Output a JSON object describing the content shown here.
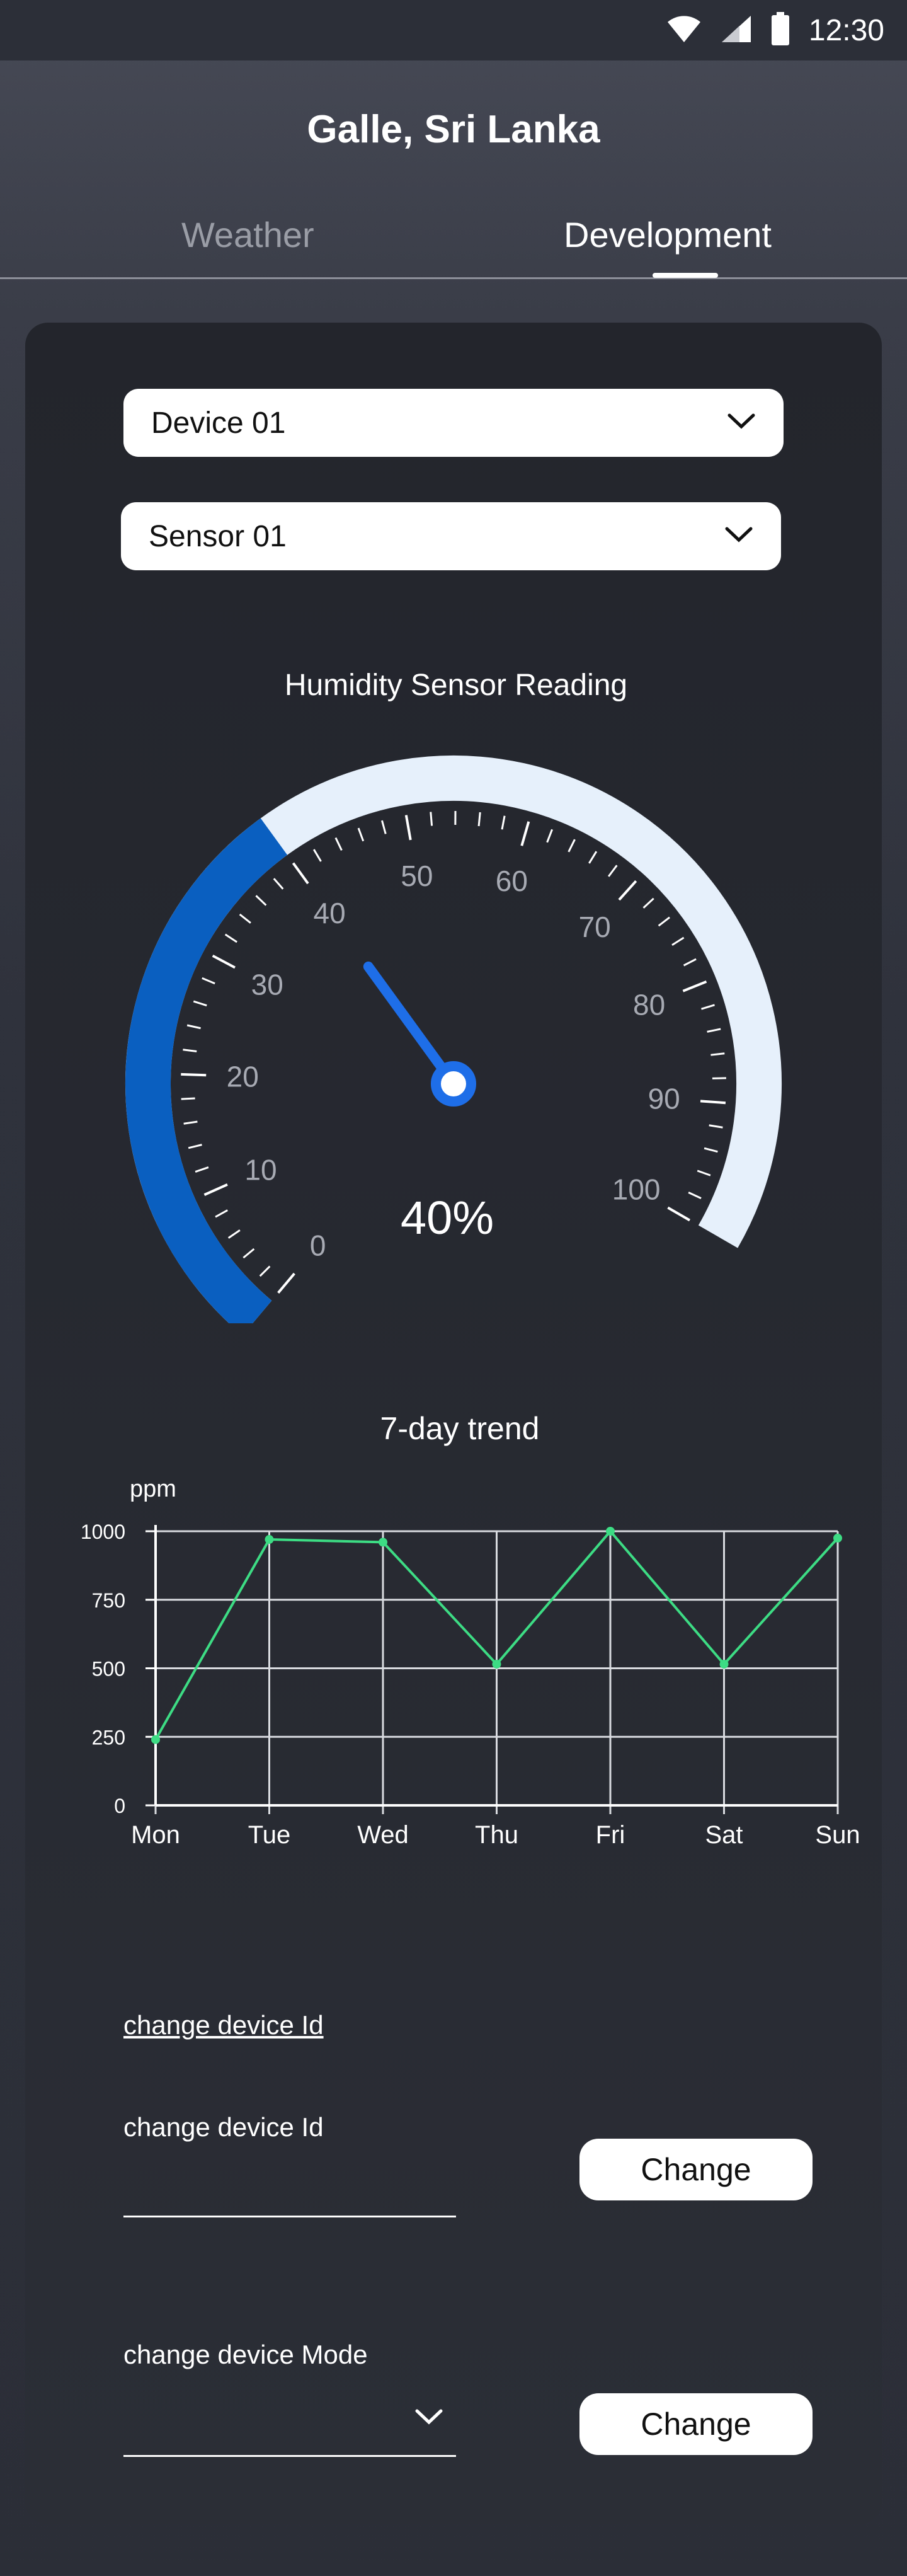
{
  "status_bar": {
    "time": "12:30",
    "icons": [
      "wifi-icon",
      "signal-icon",
      "battery-icon"
    ]
  },
  "header": {
    "title": "Galle, Sri Lanka"
  },
  "tabs": [
    {
      "label": "Weather",
      "active": false
    },
    {
      "label": "Development",
      "active": true
    }
  ],
  "device_select": {
    "value": "Device 01"
  },
  "sensor_select": {
    "value": "Sensor 01"
  },
  "gauge": {
    "title": "Humidity Sensor Reading",
    "value": 40,
    "display": "40%",
    "min": 0,
    "max": 100,
    "tick_labels": [
      "0",
      "10",
      "20",
      "30",
      "40",
      "50",
      "60",
      "70",
      "80",
      "90",
      "100"
    ],
    "colors": {
      "filled": "#0a5fc0",
      "track": "#e6f0fb",
      "needle": "#1e6ee8"
    }
  },
  "chart_data": {
    "type": "line",
    "title": "7-day trend",
    "ylabel": "ppm",
    "categories": [
      "Mon",
      "Tue",
      "Wed",
      "Thu",
      "Fri",
      "Sat",
      "Sun"
    ],
    "values": [
      240,
      970,
      960,
      515,
      1000,
      515,
      975
    ],
    "ylim": [
      0,
      1000
    ],
    "yticks": [
      0,
      250,
      500,
      750,
      1000
    ],
    "grid": true,
    "line_color": "#3ddc84"
  },
  "settings": {
    "link_label": "change device Id",
    "device_id": {
      "label": "change device Id",
      "value": "",
      "button": "Change"
    },
    "device_mode": {
      "label": "change device Mode",
      "value": "",
      "button": "Change"
    }
  }
}
